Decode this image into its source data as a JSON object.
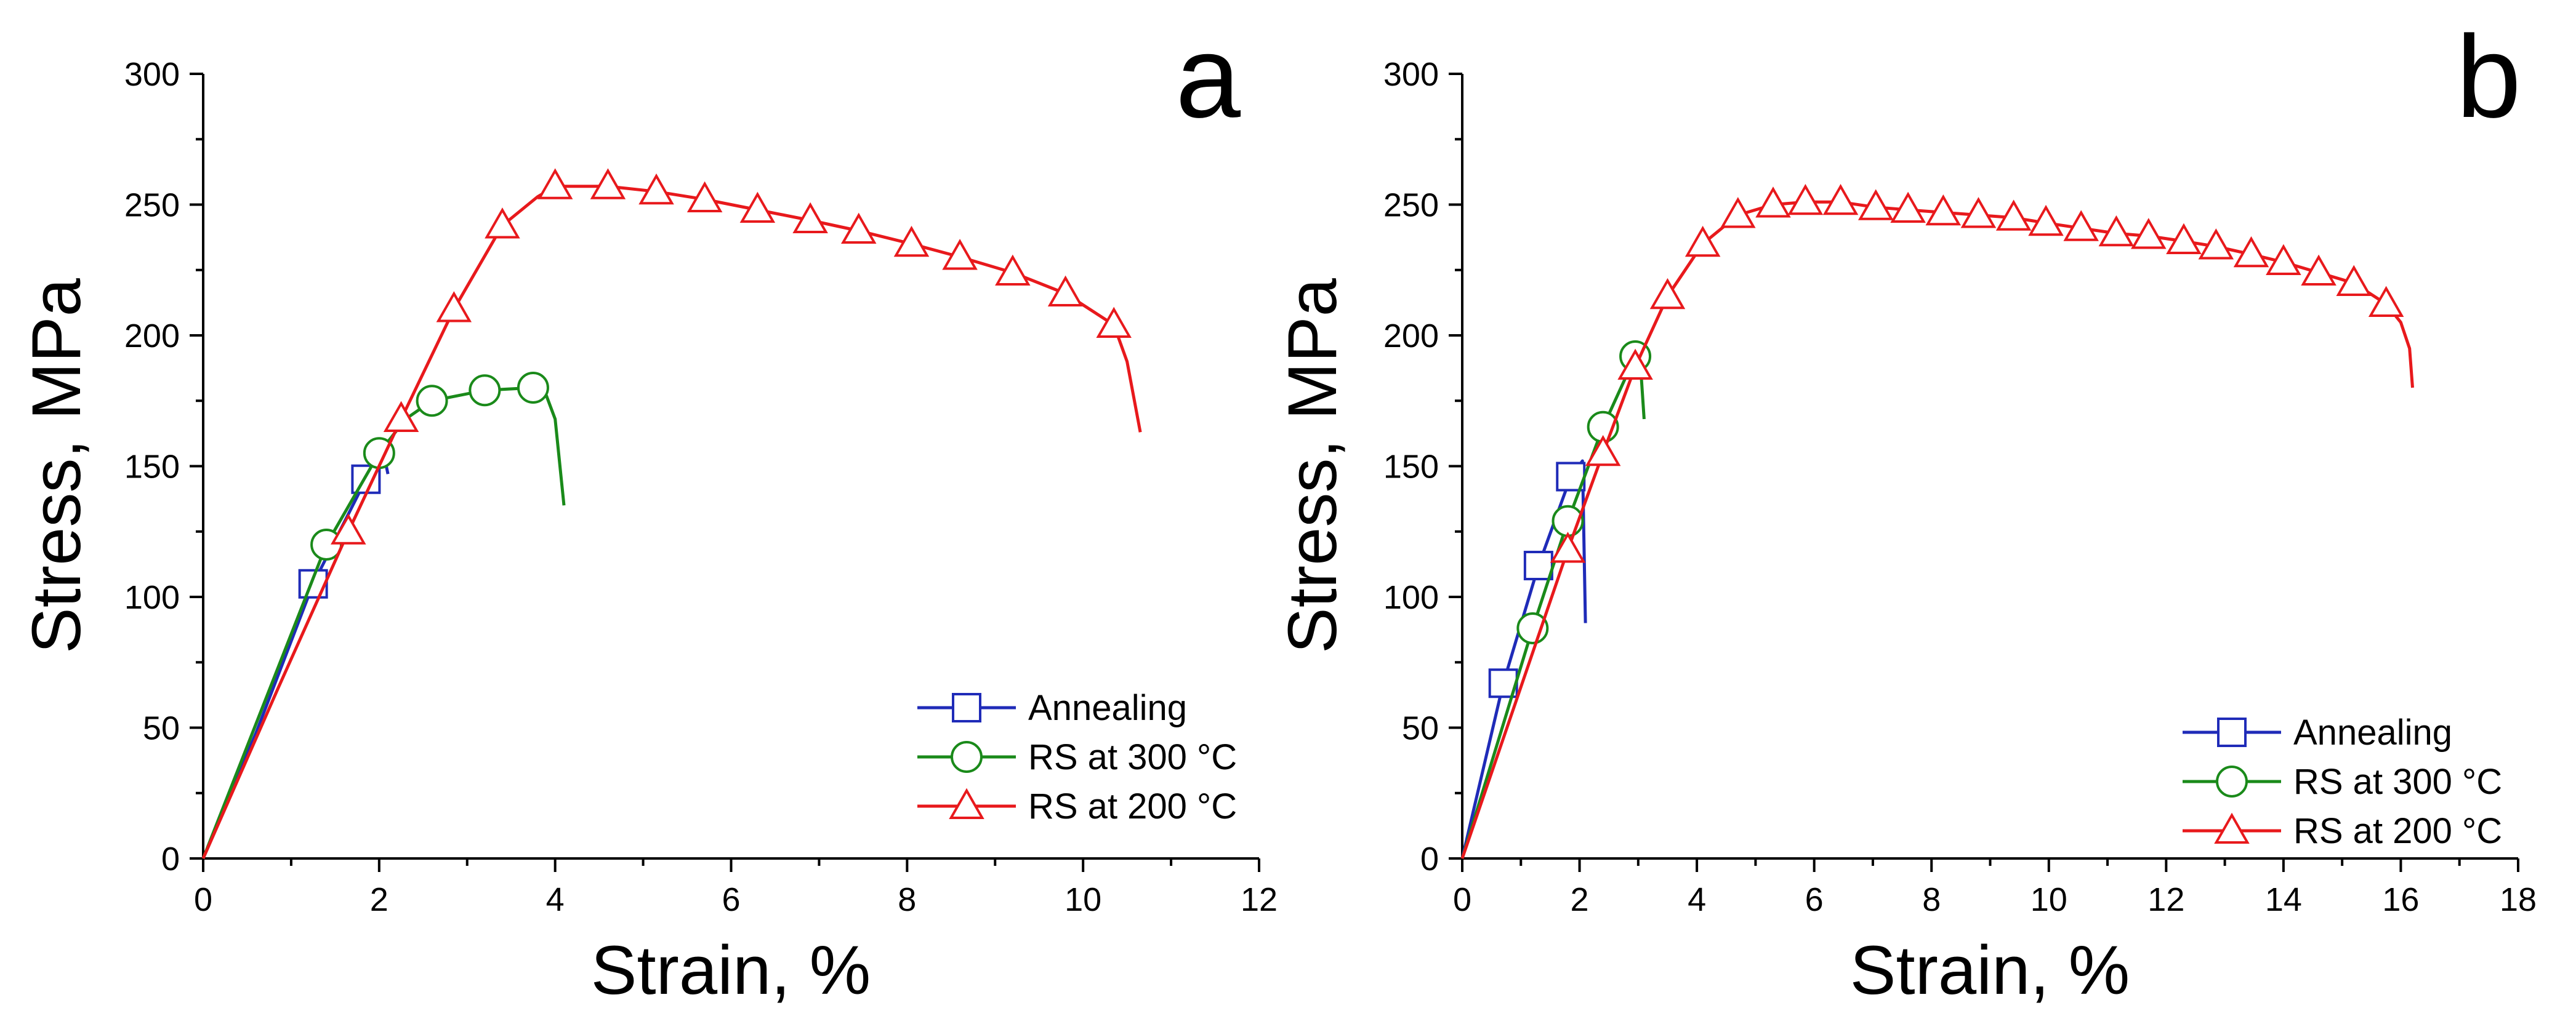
{
  "chart_data": [
    {
      "type": "line",
      "panel_label": "a",
      "xlabel": "Strain, %",
      "ylabel": "Stress, MPa",
      "xlim": [
        0,
        12
      ],
      "ylim": [
        0,
        300
      ],
      "xticks": [
        0,
        2,
        4,
        6,
        8,
        10,
        12
      ],
      "yticks": [
        0,
        50,
        100,
        150,
        200,
        250,
        300
      ],
      "xtick_labels": [
        "0",
        "2",
        "4",
        "6",
        "8",
        "10",
        "12"
      ],
      "ytick_labels": [
        "0",
        "50",
        "100",
        "150",
        "200",
        "250",
        "300"
      ],
      "legend_position": "bottom-right",
      "series": [
        {
          "name": "Annealing",
          "color": "#1f2bb8",
          "marker": "square",
          "points": [
            [
              0,
              0
            ],
            [
              0.6,
              48
            ],
            [
              1.25,
              105
            ],
            [
              1.85,
              145
            ],
            [
              2.05,
              155
            ],
            [
              2.1,
              147
            ]
          ],
          "marker_points": [
            [
              1.25,
              105
            ],
            [
              1.85,
              145
            ]
          ]
        },
        {
          "name": "RS at 300 °C",
          "color": "#1a8a1a",
          "marker": "circle",
          "points": [
            [
              0,
              0
            ],
            [
              0.7,
              60
            ],
            [
              1.4,
              120
            ],
            [
              2.0,
              155
            ],
            [
              2.3,
              168
            ],
            [
              2.6,
              175
            ],
            [
              3.2,
              179
            ],
            [
              3.75,
              180
            ],
            [
              3.9,
              177
            ],
            [
              4.0,
              168
            ],
            [
              4.1,
              135
            ]
          ],
          "marker_points": [
            [
              1.4,
              120
            ],
            [
              2.0,
              155
            ],
            [
              2.6,
              175
            ],
            [
              3.2,
              179
            ],
            [
              3.75,
              180
            ]
          ]
        },
        {
          "name": "RS at 200 °C",
          "color": "#e8191c",
          "marker": "triangle",
          "points": [
            [
              0,
              0
            ],
            [
              0.85,
              65
            ],
            [
              1.65,
              125
            ],
            [
              2.25,
              168
            ],
            [
              2.85,
              210
            ],
            [
              3.4,
              242
            ],
            [
              3.8,
              253
            ],
            [
              4.0,
              257
            ],
            [
              4.6,
              257
            ],
            [
              5.15,
              255
            ],
            [
              5.7,
              252
            ],
            [
              6.3,
              248
            ],
            [
              6.9,
              244
            ],
            [
              7.45,
              240
            ],
            [
              8.05,
              235
            ],
            [
              8.6,
              230
            ],
            [
              9.2,
              224
            ],
            [
              9.8,
              216
            ],
            [
              10.35,
              204
            ],
            [
              10.5,
              190
            ],
            [
              10.65,
              163
            ]
          ],
          "marker_points": [
            [
              1.65,
              125
            ],
            [
              2.25,
              168
            ],
            [
              2.85,
              210
            ],
            [
              3.4,
              242
            ],
            [
              4.0,
              257
            ],
            [
              4.6,
              257
            ],
            [
              5.15,
              255
            ],
            [
              5.7,
              252
            ],
            [
              6.3,
              248
            ],
            [
              6.9,
              244
            ],
            [
              7.45,
              240
            ],
            [
              8.05,
              235
            ],
            [
              8.6,
              230
            ],
            [
              9.2,
              224
            ],
            [
              9.8,
              216
            ],
            [
              10.35,
              204
            ]
          ]
        }
      ]
    },
    {
      "type": "line",
      "panel_label": "b",
      "xlabel": "Strain, %",
      "ylabel": "Stress, MPa",
      "xlim": [
        0,
        18
      ],
      "ylim": [
        0,
        300
      ],
      "xticks": [
        0,
        2,
        4,
        6,
        8,
        10,
        12,
        14,
        16,
        18
      ],
      "yticks": [
        0,
        50,
        100,
        150,
        200,
        250,
        300
      ],
      "xtick_labels": [
        "0",
        "2",
        "4",
        "6",
        "8",
        "10",
        "12",
        "14",
        "16",
        "18"
      ],
      "ytick_labels": [
        "0",
        "50",
        "100",
        "150",
        "200",
        "250",
        "300"
      ],
      "legend_position": "bottom-right",
      "series": [
        {
          "name": "Annealing",
          "color": "#1f2bb8",
          "marker": "square",
          "points": [
            [
              0,
              0
            ],
            [
              0.7,
              67
            ],
            [
              1.3,
              112
            ],
            [
              1.85,
              146
            ],
            [
              2.05,
              152
            ],
            [
              2.1,
              90
            ]
          ],
          "marker_points": [
            [
              0.7,
              67
            ],
            [
              1.3,
              112
            ],
            [
              1.85,
              146
            ]
          ]
        },
        {
          "name": "RS at 300 °C",
          "color": "#1a8a1a",
          "marker": "circle",
          "points": [
            [
              0,
              0
            ],
            [
              1.2,
              88
            ],
            [
              1.8,
              129
            ],
            [
              2.4,
              165
            ],
            [
              2.95,
              192
            ],
            [
              3.05,
              185
            ],
            [
              3.1,
              168
            ]
          ],
          "marker_points": [
            [
              1.2,
              88
            ],
            [
              1.8,
              129
            ],
            [
              2.4,
              165
            ],
            [
              2.95,
              192
            ]
          ]
        },
        {
          "name": "RS at 200 °C",
          "color": "#e8191c",
          "marker": "triangle",
          "points": [
            [
              0,
              0
            ],
            [
              1.8,
              118
            ],
            [
              2.4,
              155
            ],
            [
              2.95,
              188
            ],
            [
              3.5,
              215
            ],
            [
              4.1,
              235
            ],
            [
              4.7,
              246
            ],
            [
              5.3,
              250
            ],
            [
              5.85,
              251
            ],
            [
              6.45,
              251
            ],
            [
              7.05,
              249
            ],
            [
              7.6,
              248
            ],
            [
              8.2,
              247
            ],
            [
              8.8,
              246
            ],
            [
              9.4,
              245
            ],
            [
              9.95,
              243
            ],
            [
              10.55,
              241
            ],
            [
              11.15,
              239
            ],
            [
              11.7,
              238
            ],
            [
              12.3,
              236
            ],
            [
              12.85,
              234
            ],
            [
              13.45,
              231
            ],
            [
              14.0,
              228
            ],
            [
              14.6,
              224
            ],
            [
              15.2,
              220
            ],
            [
              15.75,
              212
            ],
            [
              16.0,
              205
            ],
            [
              16.15,
              195
            ],
            [
              16.2,
              180
            ]
          ],
          "marker_points": [
            [
              1.8,
              118
            ],
            [
              2.4,
              155
            ],
            [
              2.95,
              188
            ],
            [
              3.5,
              215
            ],
            [
              4.1,
              235
            ],
            [
              4.7,
              246
            ],
            [
              5.3,
              250
            ],
            [
              5.85,
              251
            ],
            [
              6.45,
              251
            ],
            [
              7.05,
              249
            ],
            [
              7.6,
              248
            ],
            [
              8.2,
              247
            ],
            [
              8.8,
              246
            ],
            [
              9.4,
              245
            ],
            [
              9.95,
              243
            ],
            [
              10.55,
              241
            ],
            [
              11.15,
              239
            ],
            [
              11.7,
              238
            ],
            [
              12.3,
              236
            ],
            [
              12.85,
              234
            ],
            [
              13.45,
              231
            ],
            [
              14.0,
              228
            ],
            [
              14.6,
              224
            ],
            [
              15.2,
              220
            ],
            [
              15.75,
              212
            ]
          ]
        }
      ]
    }
  ]
}
